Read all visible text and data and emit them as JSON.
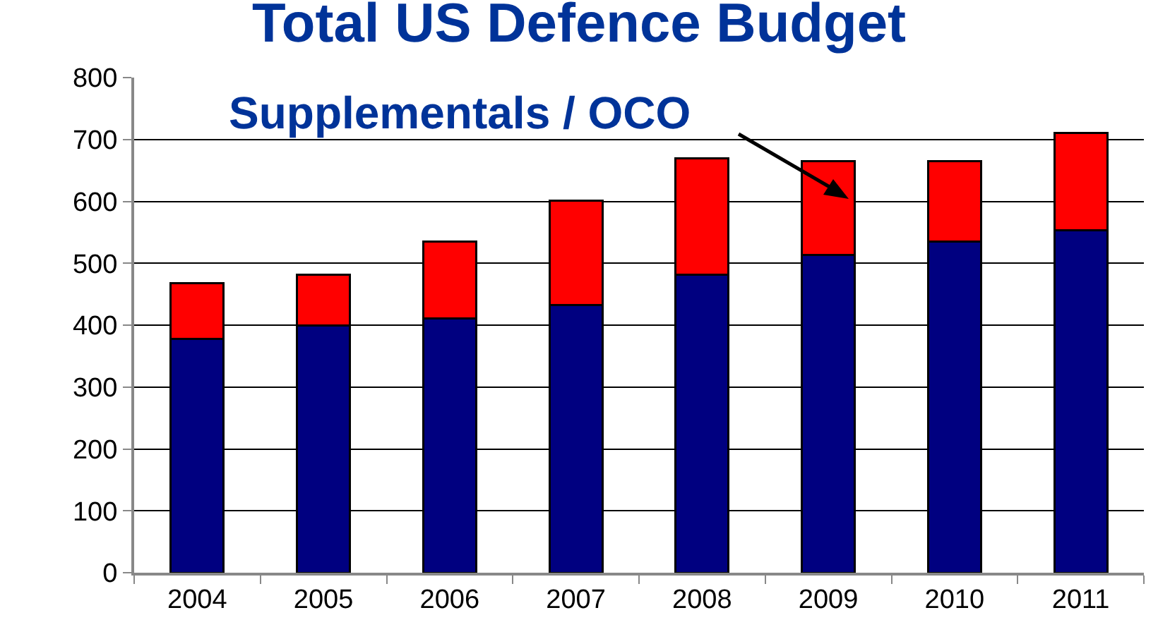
{
  "chart_data": {
    "type": "bar",
    "title": "Total US Defence Budget",
    "stacked": true,
    "categories": [
      "2004",
      "2005",
      "2006",
      "2007",
      "2008",
      "2009",
      "2010",
      "2011"
    ],
    "series": [
      {
        "color": "#000080",
        "values": [
          378,
          400,
          411,
          433,
          481,
          513,
          535,
          553
        ]
      },
      {
        "color": "#ff0000",
        "values": [
          90,
          81,
          124,
          168,
          188,
          152,
          130,
          158
        ]
      }
    ],
    "ylim": [
      0,
      800
    ],
    "yticks": [
      0,
      100,
      200,
      300,
      400,
      500,
      600,
      700,
      800
    ],
    "grid": "y",
    "annotations": [
      "Supplementals / OCO"
    ]
  }
}
